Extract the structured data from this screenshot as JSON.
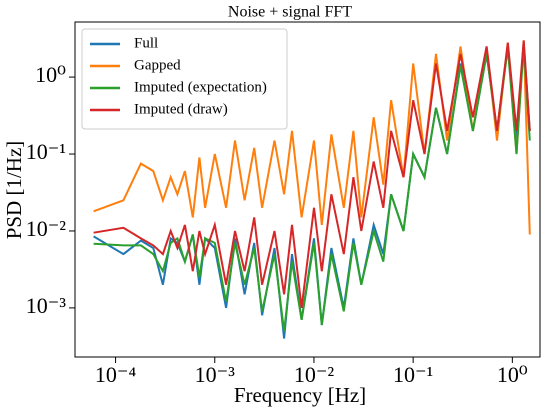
{
  "chart_data": {
    "type": "line",
    "title": "Noise + signal FFT",
    "x_label": "Frequency [Hz]",
    "y_label": "PSD [1/Hz]",
    "xscale": "log",
    "yscale": "log",
    "legend": "upper left",
    "xlim": [
      3.9e-05,
      1.9
    ],
    "ylim": [
      0.00023,
      5.2
    ],
    "xticks": [
      {
        "value": 0.0001,
        "label": "10⁻⁴"
      },
      {
        "value": 0.001,
        "label": "10⁻³"
      },
      {
        "value": 0.01,
        "label": "10⁻²"
      },
      {
        "value": 0.1,
        "label": "10⁻¹"
      },
      {
        "value": 1,
        "label": "10⁰"
      }
    ],
    "yticks": [
      {
        "value": 0.001,
        "label": "10⁻³"
      },
      {
        "value": 0.01,
        "label": "10⁻²"
      },
      {
        "value": 0.1,
        "label": "10⁻¹"
      },
      {
        "value": 1,
        "label": "10⁰"
      }
    ],
    "x": [
      6e-05,
      0.00012,
      0.00018,
      0.00024,
      0.0003,
      0.00036,
      0.00042,
      0.0005,
      0.0006,
      0.0007,
      0.0008,
      0.001,
      0.0013,
      0.0016,
      0.002,
      0.0025,
      0.003,
      0.004,
      0.005,
      0.006,
      0.0075,
      0.01,
      0.012,
      0.015,
      0.02,
      0.025,
      0.03,
      0.04,
      0.05,
      0.06,
      0.08,
      0.1,
      0.13,
      0.17,
      0.22,
      0.3,
      0.4,
      0.55,
      0.7,
      0.9,
      1.1,
      1.3,
      1.5
    ],
    "series": [
      {
        "name": "Full",
        "color": "#1f77b4",
        "values": [
          0.0085,
          0.005,
          0.0075,
          0.006,
          0.002,
          0.008,
          0.007,
          0.004,
          0.009,
          0.002,
          0.008,
          0.006,
          0.001,
          0.008,
          0.0015,
          0.007,
          0.0008,
          0.006,
          0.0004,
          0.005,
          0.0007,
          0.008,
          0.0006,
          0.006,
          0.001,
          0.008,
          0.002,
          0.012,
          0.005,
          0.03,
          0.01,
          0.1,
          0.05,
          0.4,
          0.1,
          1.5,
          0.2,
          2,
          0.2,
          2.5,
          0.15,
          2.8,
          0.2
        ]
      },
      {
        "name": "Gapped",
        "color": "#ff7f0e",
        "values": [
          0.018,
          0.025,
          0.075,
          0.06,
          0.025,
          0.05,
          0.03,
          0.06,
          0.015,
          0.09,
          0.02,
          0.1,
          0.02,
          0.15,
          0.025,
          0.12,
          0.02,
          0.15,
          0.03,
          0.2,
          0.015,
          0.15,
          0.012,
          0.18,
          0.02,
          0.2,
          0.015,
          0.3,
          0.04,
          0.5,
          0.05,
          1.5,
          0.1,
          2,
          0.15,
          2.5,
          0.2,
          2.5,
          0.15,
          2.8,
          0.1,
          3,
          0.009
        ]
      },
      {
        "name": "Imputed (expectation)",
        "color": "#2ca02c",
        "values": [
          0.0068,
          0.0065,
          0.0065,
          0.005,
          0.003,
          0.007,
          0.008,
          0.004,
          0.009,
          0.0025,
          0.008,
          0.007,
          0.0012,
          0.007,
          0.002,
          0.006,
          0.0009,
          0.005,
          0.0005,
          0.004,
          0.0007,
          0.007,
          0.0006,
          0.005,
          0.0009,
          0.007,
          0.002,
          0.01,
          0.004,
          0.03,
          0.01,
          0.1,
          0.05,
          0.4,
          0.1,
          1.4,
          0.2,
          2,
          0.2,
          2.4,
          0.1,
          2.6,
          0.15
        ]
      },
      {
        "name": "Imputed (draw)",
        "color": "#d62728",
        "values": [
          0.0095,
          0.011,
          0.008,
          0.0065,
          0.005,
          0.01,
          0.006,
          0.012,
          0.003,
          0.01,
          0.005,
          0.012,
          0.002,
          0.01,
          0.003,
          0.015,
          0.002,
          0.01,
          0.0015,
          0.012,
          0.001,
          0.02,
          0.003,
          0.03,
          0.005,
          0.05,
          0.01,
          0.08,
          0.02,
          0.2,
          0.05,
          0.5,
          0.1,
          1.5,
          0.2,
          2,
          0.3,
          2.5,
          0.2,
          2.8,
          0.2,
          3,
          0.2
        ]
      }
    ]
  }
}
